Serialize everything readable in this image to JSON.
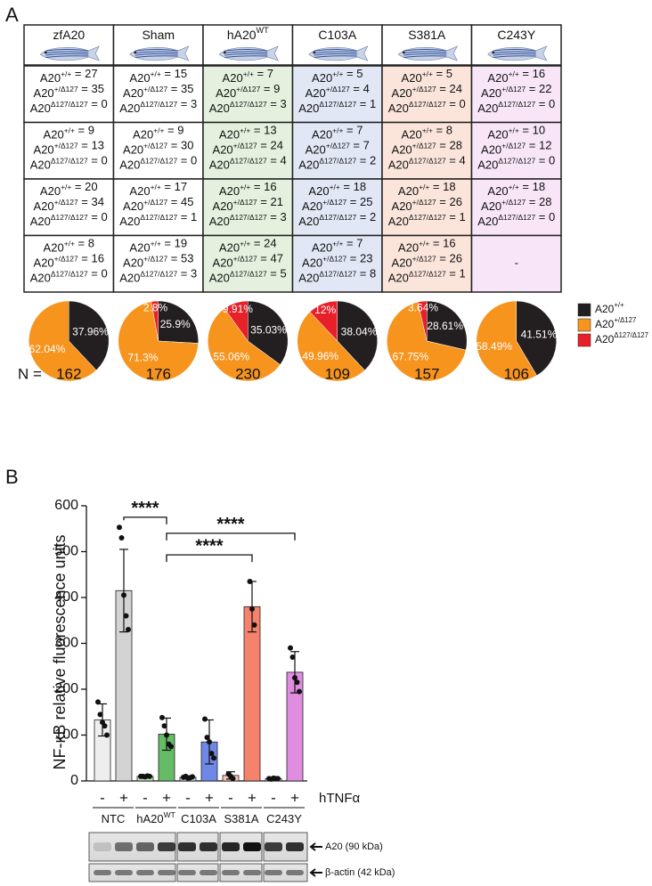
{
  "panel_labels": {
    "a": "A",
    "b": "B"
  },
  "table": {
    "gene": "A20",
    "sep": " = ",
    "genotypes": [
      "+/+",
      "+/Δ127",
      "Δ127/Δ127"
    ],
    "columns": [
      {
        "name": "zfA20"
      },
      {
        "name": "Sham"
      },
      {
        "name": "hA20",
        "sup": "WT"
      },
      {
        "name": "C103A"
      },
      {
        "name": "S381A"
      },
      {
        "name": "C243Y"
      }
    ],
    "column_colors": [
      "#ffffff",
      "#ffffff",
      "#e5f1de",
      "#e2e7f6",
      "#fbe5db",
      "#f8e6f8"
    ],
    "rows": [
      [
        [
          27,
          35,
          0
        ],
        [
          15,
          35,
          3
        ],
        [
          7,
          9,
          3
        ],
        [
          5,
          4,
          1
        ],
        [
          5,
          24,
          0
        ],
        [
          16,
          22,
          0
        ]
      ],
      [
        [
          9,
          13,
          0
        ],
        [
          9,
          30,
          0
        ],
        [
          13,
          24,
          4
        ],
        [
          7,
          7,
          2
        ],
        [
          8,
          28,
          4
        ],
        [
          10,
          12,
          0
        ]
      ],
      [
        [
          20,
          34,
          0
        ],
        [
          17,
          45,
          1
        ],
        [
          16,
          21,
          3
        ],
        [
          18,
          25,
          2
        ],
        [
          18,
          26,
          1
        ],
        [
          18,
          28,
          0
        ]
      ],
      [
        [
          8,
          16,
          0
        ],
        [
          19,
          53,
          3
        ],
        [
          24,
          47,
          5
        ],
        [
          7,
          23,
          8
        ],
        [
          16,
          26,
          1
        ],
        "-"
      ]
    ]
  },
  "pie_colors": [
    "#231f20",
    "#f7941d",
    "#e8202a"
  ],
  "n_label": "N =",
  "chart_data": [
    {
      "type": "pie",
      "values": [
        37.96,
        62.04,
        0
      ],
      "value_labels": [
        "37.96%",
        "62.04%",
        null
      ],
      "n": 162
    },
    {
      "type": "pie",
      "values": [
        25.9,
        71.3,
        2.8
      ],
      "value_labels": [
        "25.9%",
        "71.3%",
        "2.8%"
      ],
      "n": 176
    },
    {
      "type": "pie",
      "values": [
        35.03,
        55.06,
        9.91
      ],
      "value_labels": [
        "35.03%",
        "55.06%",
        "9.91%"
      ],
      "n": 230
    },
    {
      "type": "pie",
      "values": [
        38.04,
        49.96,
        12
      ],
      "value_labels": [
        "38.04%",
        "49.96%",
        "12%"
      ],
      "n": 109
    },
    {
      "type": "pie",
      "values": [
        28.61,
        67.75,
        3.64
      ],
      "value_labels": [
        "28.61%",
        "67.75%",
        "3.64%"
      ],
      "n": 157
    },
    {
      "type": "pie",
      "values": [
        41.51,
        58.49,
        0
      ],
      "value_labels": [
        "41.51%",
        "58.49%",
        null
      ],
      "n": 106
    },
    {
      "type": "bar",
      "ylabel": "NF-κB relative fluorescence units",
      "ylim": [
        0,
        600
      ],
      "yticks": [
        0,
        100,
        200,
        300,
        400,
        500,
        600
      ],
      "categories": [
        "-",
        "+",
        "-",
        "+",
        "-",
        "+",
        "-",
        "+",
        "-",
        "+"
      ],
      "groups": [
        {
          "name": "NTC"
        },
        {
          "name": "hA20",
          "sup": "WT"
        },
        {
          "name": "C103A"
        },
        {
          "name": "S381A"
        },
        {
          "name": "C243Y"
        }
      ],
      "group_factor": "hTNFα",
      "values": [
        133,
        415,
        10,
        102,
        8,
        85,
        12,
        380,
        5,
        237
      ],
      "errors": [
        35,
        90,
        2,
        35,
        3,
        48,
        8,
        55,
        1,
        45
      ],
      "colors": [
        "#eeeeee",
        "#d3d3d3",
        "#b5e0ad",
        "#66bb66",
        "#c3cdf3",
        "#6f88e8",
        "#f9c3b5",
        "#f4826d",
        "#f3c9f3",
        "#e08ddf"
      ],
      "points": [
        [
          172,
          145,
          128,
          120,
          100
        ],
        [
          553,
          530,
          405,
          360,
          330
        ],
        [
          10,
          10,
          9,
          11,
          10
        ],
        [
          138,
          120,
          100,
          80,
          75
        ],
        [
          8,
          10,
          6,
          7,
          9
        ],
        [
          135,
          95,
          85,
          60,
          50
        ],
        [
          15,
          10,
          5
        ],
        [
          435,
          375,
          340
        ],
        [
          5,
          4,
          6,
          5,
          5
        ],
        [
          290,
          270,
          225,
          215,
          195
        ]
      ],
      "annotations": [
        {
          "text": "****",
          "from": 1,
          "to": 3,
          "y": 575
        },
        {
          "text": "****",
          "from": 3,
          "to": 9,
          "y": 540
        },
        {
          "text": "****",
          "from": 3,
          "to": 7,
          "y": 493
        }
      ]
    }
  ],
  "blot": {
    "labels": [
      "A20 (90 kDa)",
      "β-actin (42 kDa)"
    ]
  }
}
